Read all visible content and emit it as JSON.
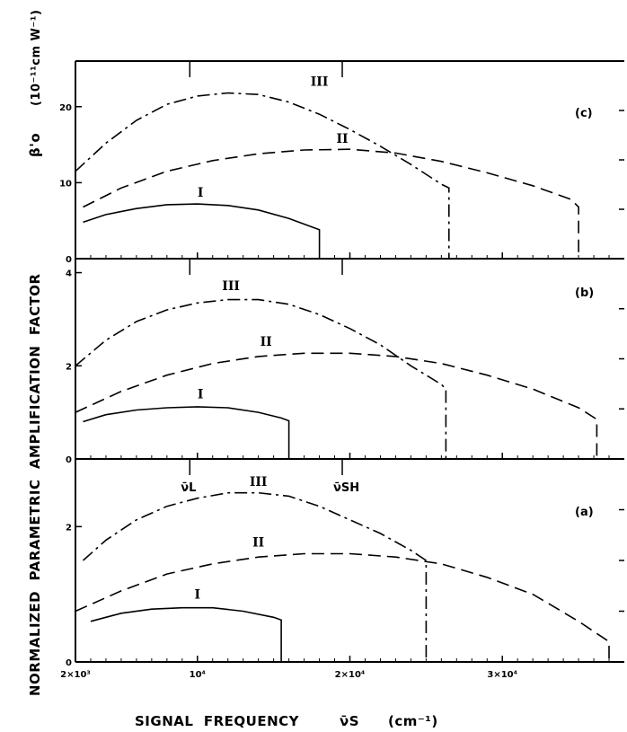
{
  "chart_data": {
    "type": "line",
    "ylabel": "NORMALIZED  PARAMETRIC  AMPLIFICATION  FACTOR",
    "ylabel_top": "β'o",
    "ylabel_units": "(10⁻¹¹cm W⁻¹)",
    "xlabel": "SIGNAL  FREQUENCY",
    "xlabel_symbol": "ν̄S",
    "xlabel_unit": "(cm⁻¹)",
    "x_ticks": [
      {
        "x": 2000,
        "label": "2×10³"
      },
      {
        "x": 10000,
        "label": "10⁴"
      },
      {
        "x": 20000,
        "label": "2×10⁴"
      },
      {
        "x": 30000,
        "label": "3×10⁴"
      }
    ],
    "xlim": [
      2000,
      38000
    ],
    "markers": [
      {
        "label": "ν̄L",
        "x": 9500
      },
      {
        "label": "ν̄SH",
        "x": 19500
      }
    ],
    "panels": [
      {
        "id": "c",
        "tag": "(c)",
        "ylim": [
          0,
          26
        ],
        "yticks": [
          0,
          10,
          20
        ],
        "series": [
          {
            "name": "III",
            "style": "dashdot",
            "points": [
              [
                2000,
                11.5
              ],
              [
                4000,
                15.2
              ],
              [
                6000,
                18.2
              ],
              [
                8000,
                20.3
              ],
              [
                10000,
                21.4
              ],
              [
                12000,
                21.8
              ],
              [
                14000,
                21.6
              ],
              [
                16000,
                20.6
              ],
              [
                18000,
                19.0
              ],
              [
                20000,
                17.0
              ],
              [
                22000,
                14.8
              ],
              [
                24000,
                12.4
              ],
              [
                26000,
                9.8
              ],
              [
                26500,
                9.3
              ],
              [
                26500,
                0
              ]
            ]
          },
          {
            "name": "II",
            "style": "dashed",
            "points": [
              [
                2500,
                6.8
              ],
              [
                5000,
                9.3
              ],
              [
                8000,
                11.5
              ],
              [
                11000,
                12.9
              ],
              [
                14000,
                13.8
              ],
              [
                17000,
                14.3
              ],
              [
                20000,
                14.4
              ],
              [
                23000,
                13.9
              ],
              [
                26000,
                12.8
              ],
              [
                29000,
                11.3
              ],
              [
                32000,
                9.6
              ],
              [
                34500,
                7.8
              ],
              [
                35000,
                6.8
              ],
              [
                35000,
                0
              ]
            ]
          },
          {
            "name": "I",
            "style": "solid",
            "points": [
              [
                2500,
                4.8
              ],
              [
                4000,
                5.8
              ],
              [
                6000,
                6.6
              ],
              [
                8000,
                7.1
              ],
              [
                10000,
                7.2
              ],
              [
                12000,
                7.0
              ],
              [
                14000,
                6.4
              ],
              [
                16000,
                5.3
              ],
              [
                18000,
                3.8
              ],
              [
                18000,
                0
              ]
            ]
          }
        ]
      },
      {
        "id": "b",
        "tag": "(b)",
        "ylim": [
          0,
          4.3
        ],
        "yticks": [
          0,
          2,
          4
        ],
        "series": [
          {
            "name": "III",
            "style": "dashdot",
            "points": [
              [
                2000,
                2.0
              ],
              [
                4000,
                2.55
              ],
              [
                6000,
                2.95
              ],
              [
                8000,
                3.2
              ],
              [
                10000,
                3.35
              ],
              [
                12000,
                3.42
              ],
              [
                14000,
                3.42
              ],
              [
                16000,
                3.32
              ],
              [
                18000,
                3.1
              ],
              [
                20000,
                2.8
              ],
              [
                22000,
                2.45
              ],
              [
                24000,
                2.0
              ],
              [
                26000,
                1.6
              ],
              [
                26300,
                1.5
              ],
              [
                26300,
                0
              ]
            ]
          },
          {
            "name": "II",
            "style": "dashed",
            "points": [
              [
                2000,
                1.0
              ],
              [
                5000,
                1.45
              ],
              [
                8000,
                1.8
              ],
              [
                11000,
                2.05
              ],
              [
                14000,
                2.2
              ],
              [
                17000,
                2.27
              ],
              [
                20000,
                2.27
              ],
              [
                23000,
                2.2
              ],
              [
                26000,
                2.05
              ],
              [
                29000,
                1.8
              ],
              [
                32000,
                1.5
              ],
              [
                35000,
                1.1
              ],
              [
                36200,
                0.85
              ],
              [
                36200,
                0
              ]
            ]
          },
          {
            "name": "I",
            "style": "solid",
            "points": [
              [
                2500,
                0.8
              ],
              [
                4000,
                0.95
              ],
              [
                6000,
                1.05
              ],
              [
                8000,
                1.1
              ],
              [
                10000,
                1.12
              ],
              [
                12000,
                1.1
              ],
              [
                14000,
                1.0
              ],
              [
                15500,
                0.88
              ],
              [
                16000,
                0.82
              ],
              [
                16000,
                0
              ]
            ]
          }
        ]
      },
      {
        "id": "a",
        "tag": "(a)",
        "ylim": [
          0,
          3.0
        ],
        "yticks": [
          0,
          2
        ],
        "series": [
          {
            "name": "III",
            "style": "dashdot",
            "points": [
              [
                2500,
                1.5
              ],
              [
                4000,
                1.8
              ],
              [
                6000,
                2.1
              ],
              [
                8000,
                2.3
              ],
              [
                10000,
                2.42
              ],
              [
                12000,
                2.5
              ],
              [
                14000,
                2.5
              ],
              [
                16000,
                2.45
              ],
              [
                18000,
                2.3
              ],
              [
                20000,
                2.1
              ],
              [
                22000,
                1.9
              ],
              [
                24000,
                1.65
              ],
              [
                25000,
                1.5
              ],
              [
                25000,
                0
              ]
            ]
          },
          {
            "name": "II",
            "style": "dashed",
            "points": [
              [
                2000,
                0.75
              ],
              [
                5000,
                1.05
              ],
              [
                8000,
                1.3
              ],
              [
                11000,
                1.45
              ],
              [
                14000,
                1.55
              ],
              [
                17000,
                1.6
              ],
              [
                20000,
                1.6
              ],
              [
                23000,
                1.55
              ],
              [
                26000,
                1.45
              ],
              [
                29000,
                1.25
              ],
              [
                32000,
                1.0
              ],
              [
                35000,
                0.6
              ],
              [
                37000,
                0.3
              ],
              [
                37000,
                0
              ]
            ]
          },
          {
            "name": "I",
            "style": "solid",
            "points": [
              [
                3000,
                0.6
              ],
              [
                5000,
                0.72
              ],
              [
                7000,
                0.78
              ],
              [
                9000,
                0.8
              ],
              [
                11000,
                0.8
              ],
              [
                13000,
                0.75
              ],
              [
                15000,
                0.66
              ],
              [
                15500,
                0.62
              ],
              [
                15500,
                0
              ]
            ]
          }
        ]
      }
    ]
  }
}
